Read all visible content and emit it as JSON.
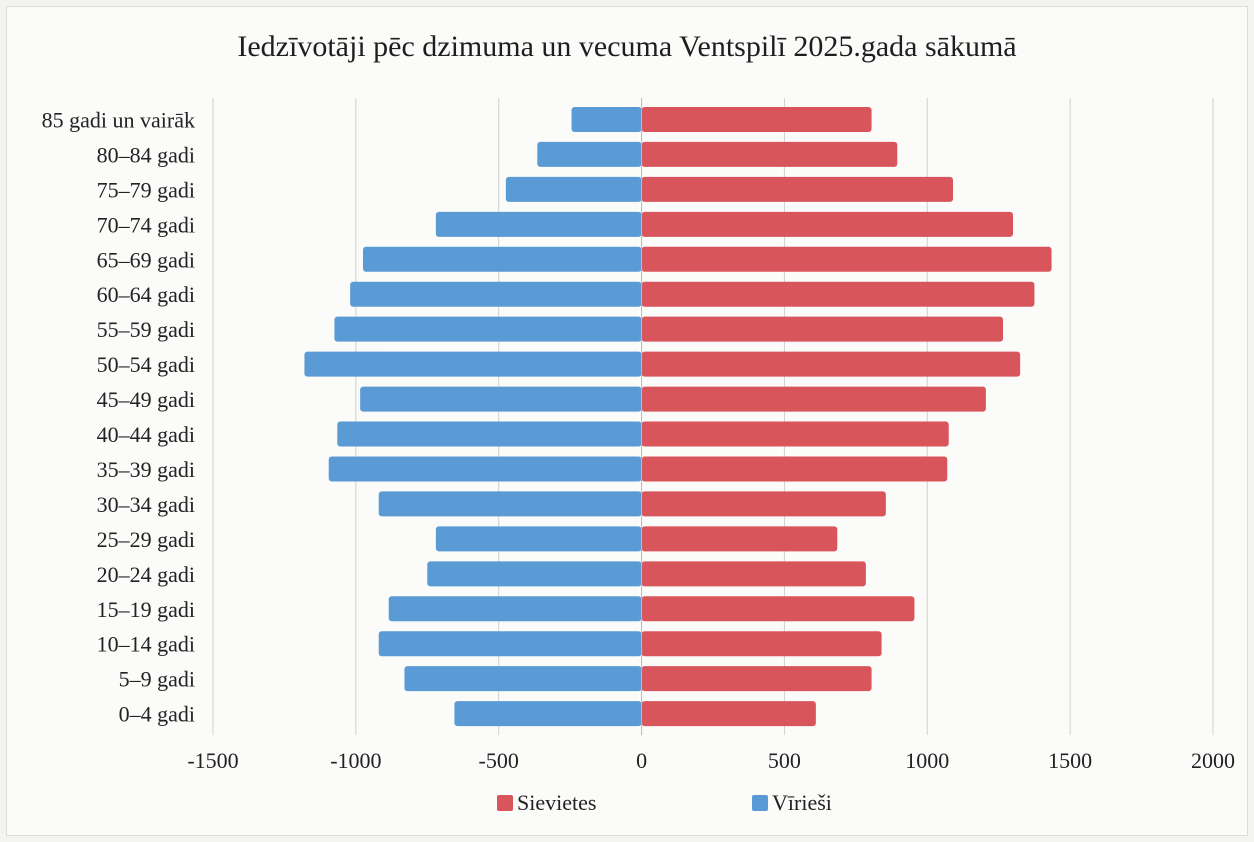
{
  "chart_data": {
    "type": "bar",
    "orientation": "horizontal",
    "title": "Iedzīvotāji pēc dzimuma un vecuma Ventspilī 2025.gada sākumā",
    "categories": [
      "0–4 gadi",
      "5–9 gadi",
      "10–14 gadi",
      "15–19 gadi",
      "20–24 gadi",
      "25–29 gadi",
      "30–34 gadi",
      "35–39 gadi",
      "40–44 gadi",
      "45–49 gadi",
      "50–54 gadi",
      "55–59 gadi",
      "60–64 gadi",
      "65–69 gadi",
      "70–74 gadi",
      "75–79 gadi",
      "80–84 gadi",
      "85 gadi un vairāk"
    ],
    "series": [
      {
        "name": "Sievietes",
        "color": "#d9555c",
        "values": [
          610,
          805,
          840,
          955,
          785,
          685,
          855,
          1070,
          1075,
          1205,
          1325,
          1265,
          1375,
          1435,
          1300,
          1090,
          895,
          805
        ]
      },
      {
        "name": "Vīrieši",
        "color": "#5b9bd5",
        "values": [
          -655,
          -830,
          -920,
          -885,
          -750,
          -720,
          -920,
          -1095,
          -1065,
          -985,
          -1180,
          -1075,
          -1020,
          -975,
          -720,
          -475,
          -365,
          -245
        ]
      }
    ],
    "xlim": [
      -1500,
      2000
    ],
    "xticks": [
      -1500,
      -1000,
      -500,
      0,
      500,
      1000,
      1500,
      2000
    ],
    "grid": "vertical",
    "legend_position": "bottom"
  }
}
